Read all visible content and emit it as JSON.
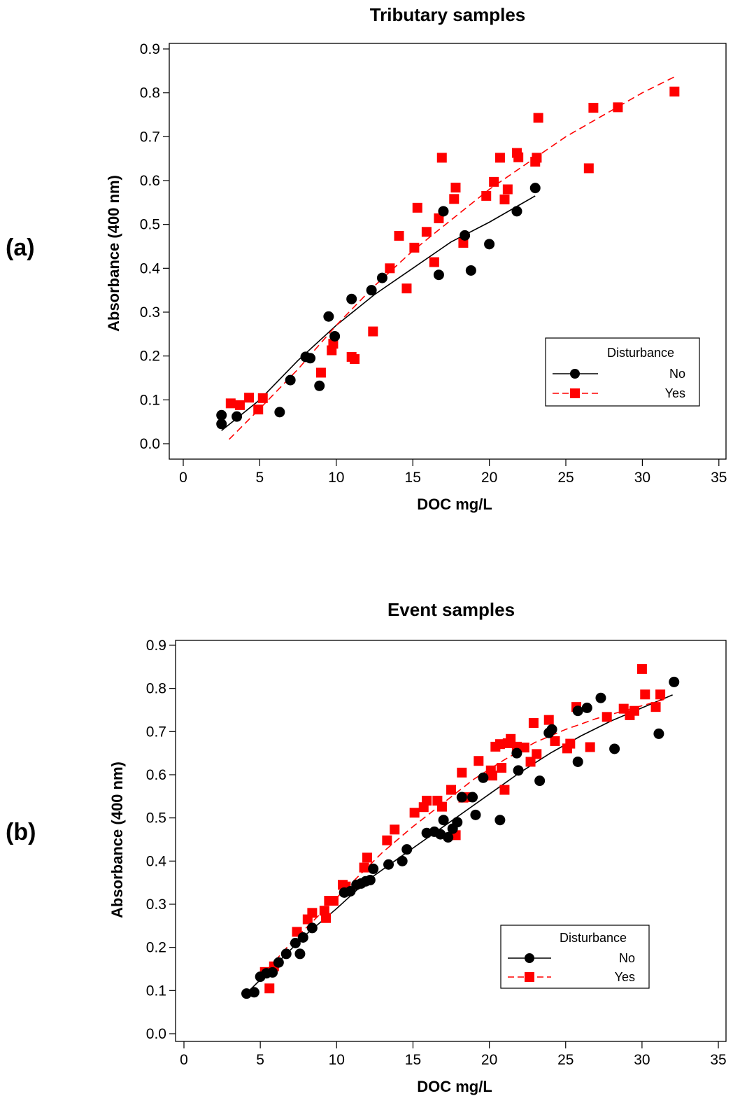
{
  "panels": [
    {
      "label": "(a)"
    },
    {
      "label": "(b)"
    }
  ],
  "chart_data": [
    {
      "type": "scatter",
      "title": "Tributary samples",
      "xlabel": "DOC mg/L",
      "ylabel": "Absorbance (400 nm)",
      "xlim": [
        0,
        35
      ],
      "ylim": [
        0.0,
        0.9
      ],
      "xticks": [
        "0",
        "5",
        "10",
        "15",
        "20",
        "25",
        "30",
        "35"
      ],
      "yticks": [
        "0.0",
        "0.1",
        "0.2",
        "0.3",
        "0.4",
        "0.5",
        "0.6",
        "0.7",
        "0.8",
        "0.9"
      ],
      "grid": false,
      "legend": {
        "title": "Disturbance",
        "position": "lower-right"
      },
      "series": [
        {
          "name": "No",
          "color": "#000000",
          "marker": "circle",
          "line": "solid",
          "x": [
            2.5,
            2.5,
            3.5,
            6.3,
            7.0,
            8.0,
            8.3,
            8.9,
            9.5,
            9.9,
            11.0,
            12.3,
            13.0,
            16.7,
            17.0,
            18.4,
            18.8,
            20.0,
            21.8,
            23.0
          ],
          "y": [
            0.045,
            0.065,
            0.062,
            0.072,
            0.145,
            0.198,
            0.195,
            0.132,
            0.29,
            0.245,
            0.33,
            0.35,
            0.378,
            0.385,
            0.53,
            0.475,
            0.395,
            0.455,
            0.53,
            0.583
          ],
          "trend_x": [
            2.5,
            5,
            7.5,
            10,
            12.5,
            15,
            17.5,
            20,
            23
          ],
          "trend_y": [
            0.03,
            0.1,
            0.19,
            0.27,
            0.34,
            0.4,
            0.46,
            0.505,
            0.565
          ]
        },
        {
          "name": "Yes",
          "color": "#ff0000",
          "marker": "square",
          "line": "dashed",
          "x": [
            3.1,
            3.7,
            4.3,
            4.9,
            5.2,
            9.0,
            9.7,
            9.8,
            11.0,
            11.2,
            12.4,
            13.5,
            14.1,
            14.6,
            15.1,
            15.3,
            15.9,
            16.4,
            16.7,
            16.9,
            17.7,
            17.8,
            18.3,
            19.8,
            20.3,
            20.7,
            21.0,
            21.2,
            21.8,
            21.9,
            23.0,
            23.1,
            23.2,
            26.5,
            26.8,
            28.4,
            32.1
          ],
          "y": [
            0.092,
            0.088,
            0.105,
            0.078,
            0.104,
            0.162,
            0.213,
            0.228,
            0.198,
            0.193,
            0.256,
            0.4,
            0.474,
            0.354,
            0.447,
            0.538,
            0.483,
            0.414,
            0.514,
            0.652,
            0.558,
            0.584,
            0.458,
            0.565,
            0.597,
            0.652,
            0.557,
            0.58,
            0.663,
            0.653,
            0.643,
            0.652,
            0.743,
            0.628,
            0.766,
            0.767,
            0.803
          ],
          "trend_x": [
            3,
            5,
            7.5,
            10,
            12.5,
            15,
            17.5,
            20,
            22.5,
            25,
            27.5,
            30,
            32.3
          ],
          "trend_y": [
            0.01,
            0.08,
            0.17,
            0.27,
            0.36,
            0.44,
            0.51,
            0.58,
            0.64,
            0.7,
            0.75,
            0.8,
            0.84
          ]
        }
      ]
    },
    {
      "type": "scatter",
      "title": "Event samples",
      "xlabel": "DOC mg/L",
      "ylabel": "Absorbance (400 nm)",
      "xlim": [
        0,
        35
      ],
      "ylim": [
        0.0,
        0.9
      ],
      "xticks": [
        "0",
        "5",
        "10",
        "15",
        "20",
        "25",
        "30",
        "35"
      ],
      "yticks": [
        "0.0",
        "0.1",
        "0.2",
        "0.3",
        "0.4",
        "0.5",
        "0.6",
        "0.7",
        "0.8",
        "0.9"
      ],
      "grid": false,
      "legend": {
        "title": "Disturbance",
        "position": "lower-right"
      },
      "series": [
        {
          "name": "No",
          "color": "#000000",
          "marker": "circle",
          "line": "solid",
          "x": [
            4.1,
            4.6,
            5.0,
            5.4,
            5.8,
            6.2,
            6.7,
            7.3,
            7.6,
            7.8,
            8.4,
            10.5,
            10.9,
            11.3,
            11.6,
            11.9,
            12.2,
            12.4,
            13.4,
            14.3,
            14.6,
            15.9,
            16.4,
            16.8,
            17.0,
            17.3,
            17.6,
            17.9,
            18.2,
            18.9,
            19.1,
            19.6,
            20.7,
            21.8,
            21.9,
            23.3,
            23.9,
            24.1,
            25.8,
            25.8,
            26.4,
            27.3,
            28.2,
            31.1,
            32.1
          ],
          "y": [
            0.093,
            0.096,
            0.132,
            0.14,
            0.142,
            0.165,
            0.185,
            0.21,
            0.185,
            0.223,
            0.245,
            0.327,
            0.33,
            0.345,
            0.348,
            0.353,
            0.356,
            0.382,
            0.392,
            0.4,
            0.427,
            0.465,
            0.468,
            0.462,
            0.495,
            0.455,
            0.475,
            0.49,
            0.548,
            0.548,
            0.507,
            0.593,
            0.495,
            0.65,
            0.61,
            0.586,
            0.697,
            0.705,
            0.748,
            0.63,
            0.755,
            0.778,
            0.66,
            0.695,
            0.815
          ],
          "trend_x": [
            4,
            6,
            8,
            10,
            12,
            14,
            16,
            18,
            20,
            22,
            24,
            26,
            28,
            30,
            32
          ],
          "trend_y": [
            0.09,
            0.16,
            0.23,
            0.29,
            0.355,
            0.405,
            0.455,
            0.505,
            0.555,
            0.605,
            0.65,
            0.69,
            0.725,
            0.755,
            0.785
          ]
        },
        {
          "name": "Yes",
          "color": "#ff0000",
          "marker": "square",
          "line": "dashed",
          "x": [
            5.3,
            5.6,
            5.9,
            7.4,
            8.1,
            8.4,
            9.2,
            9.3,
            9.5,
            9.8,
            10.4,
            10.6,
            11.8,
            12.0,
            13.3,
            13.8,
            15.1,
            15.7,
            15.9,
            16.6,
            16.9,
            17.5,
            17.8,
            18.2,
            18.3,
            18.5,
            19.3,
            20.1,
            20.2,
            20.4,
            20.7,
            20.8,
            21.0,
            21.2,
            21.4,
            21.8,
            22.3,
            22.7,
            22.9,
            23.1,
            23.9,
            24.3,
            25.1,
            25.3,
            25.7,
            26.6,
            27.7,
            28.8,
            29.2,
            29.5,
            30.0,
            30.2,
            30.9,
            31.2
          ],
          "y": [
            0.143,
            0.105,
            0.156,
            0.236,
            0.265,
            0.28,
            0.285,
            0.268,
            0.308,
            0.308,
            0.345,
            0.341,
            0.385,
            0.408,
            0.448,
            0.473,
            0.512,
            0.525,
            0.54,
            0.54,
            0.526,
            0.565,
            0.46,
            0.605,
            0.547,
            0.548,
            0.632,
            0.61,
            0.598,
            0.665,
            0.671,
            0.616,
            0.565,
            0.673,
            0.683,
            0.665,
            0.663,
            0.63,
            0.72,
            0.648,
            0.727,
            0.678,
            0.661,
            0.672,
            0.757,
            0.664,
            0.734,
            0.753,
            0.738,
            0.748,
            0.845,
            0.786,
            0.757,
            0.786
          ],
          "trend_x": [
            5,
            7,
            9,
            11,
            13,
            15,
            17,
            19,
            21,
            23,
            25,
            27,
            29,
            31.5
          ],
          "trend_y": [
            0.13,
            0.21,
            0.28,
            0.35,
            0.42,
            0.48,
            0.535,
            0.59,
            0.635,
            0.675,
            0.705,
            0.73,
            0.75,
            0.775
          ]
        }
      ]
    }
  ]
}
